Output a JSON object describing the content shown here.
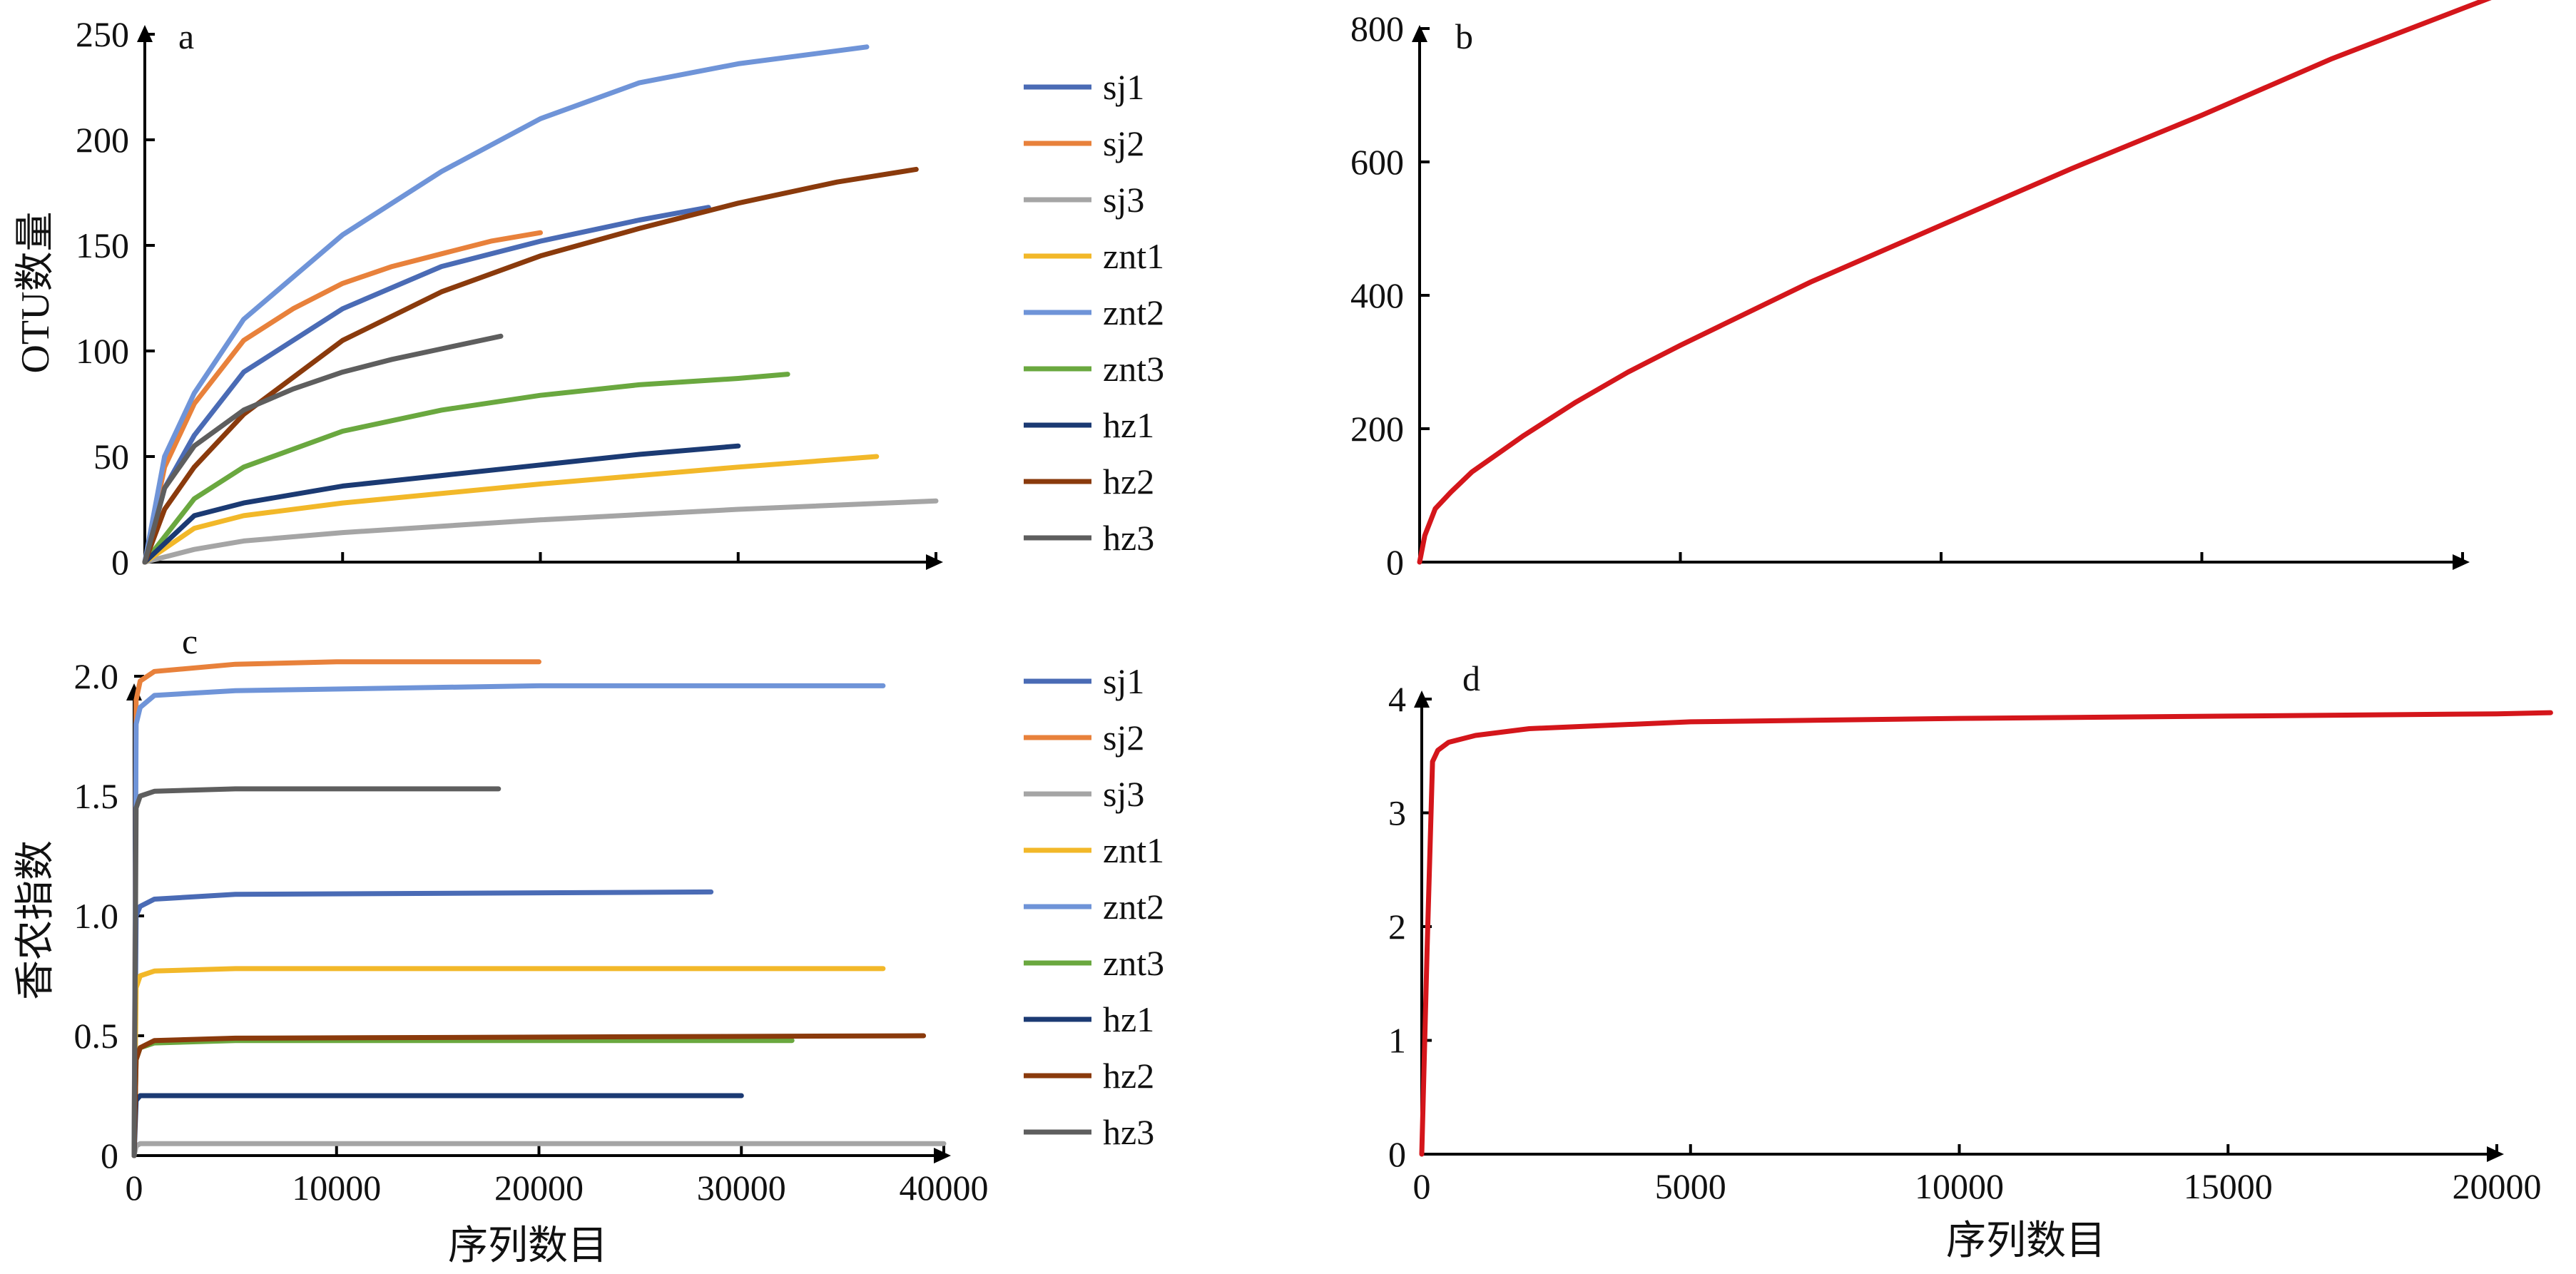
{
  "colors": {
    "sj1": "#4a6bb5",
    "sj2": "#e8813b",
    "sj3": "#a5a5a5",
    "znt1": "#f2b829",
    "znt2": "#6f94d8",
    "znt3": "#6aa83f",
    "hz1": "#1b3a73",
    "hz2": "#8a3a0c",
    "hz3": "#5e5e5e",
    "total": "#d4161b",
    "axis": "#000000"
  },
  "legend": [
    "sj1",
    "sj2",
    "sj3",
    "znt1",
    "znt2",
    "znt3",
    "hz1",
    "hz2",
    "hz3"
  ],
  "shared_xlabel": "序列数目",
  "chart_data": [
    {
      "id": "a",
      "type": "line",
      "panel_label": "a",
      "ylabel": "OTU数量",
      "xlabel": "",
      "xlim": [
        0,
        40000
      ],
      "ylim": [
        0,
        250
      ],
      "xticks": [
        0,
        10000,
        20000,
        30000,
        40000
      ],
      "xtick_labels_shown": false,
      "yticks": [
        0,
        50,
        100,
        150,
        200,
        250
      ],
      "series": [
        {
          "name": "sj1",
          "x": [
            0,
            1000,
            2500,
            5000,
            10000,
            15000,
            20000,
            25000,
            28500
          ],
          "y": [
            0,
            35,
            60,
            90,
            120,
            140,
            152,
            162,
            168
          ]
        },
        {
          "name": "sj2",
          "x": [
            0,
            1000,
            2500,
            5000,
            7500,
            10000,
            12500,
            15000,
            17500,
            20000
          ],
          "y": [
            0,
            45,
            75,
            105,
            120,
            132,
            140,
            146,
            152,
            156
          ]
        },
        {
          "name": "sj3",
          "x": [
            0,
            2500,
            5000,
            10000,
            20000,
            30000,
            40000
          ],
          "y": [
            0,
            6,
            10,
            14,
            20,
            25,
            29
          ]
        },
        {
          "name": "znt1",
          "x": [
            0,
            2500,
            5000,
            10000,
            20000,
            30000,
            37000
          ],
          "y": [
            0,
            16,
            22,
            28,
            37,
            45,
            50
          ]
        },
        {
          "name": "znt2",
          "x": [
            0,
            1000,
            2500,
            5000,
            10000,
            15000,
            20000,
            25000,
            30000,
            36500
          ],
          "y": [
            0,
            50,
            80,
            115,
            155,
            185,
            210,
            227,
            236,
            244
          ]
        },
        {
          "name": "znt3",
          "x": [
            0,
            2500,
            5000,
            10000,
            15000,
            20000,
            25000,
            30000,
            32500
          ],
          "y": [
            0,
            30,
            45,
            62,
            72,
            79,
            84,
            87,
            89
          ]
        },
        {
          "name": "hz1",
          "x": [
            0,
            2500,
            5000,
            10000,
            15000,
            20000,
            25000,
            30000
          ],
          "y": [
            0,
            22,
            28,
            36,
            41,
            46,
            51,
            55
          ]
        },
        {
          "name": "hz2",
          "x": [
            0,
            1000,
            2500,
            5000,
            10000,
            15000,
            20000,
            25000,
            30000,
            35000,
            39000
          ],
          "y": [
            0,
            25,
            45,
            70,
            105,
            128,
            145,
            158,
            170,
            180,
            186
          ]
        },
        {
          "name": "hz3",
          "x": [
            0,
            1000,
            2500,
            5000,
            7500,
            10000,
            12500,
            15000,
            18000
          ],
          "y": [
            0,
            35,
            55,
            72,
            82,
            90,
            96,
            101,
            107
          ]
        }
      ]
    },
    {
      "id": "b",
      "type": "line",
      "panel_label": "b",
      "ylabel": "",
      "xlabel": "",
      "xlim": [
        0,
        20000
      ],
      "ylim": [
        0,
        800
      ],
      "xticks": [
        0,
        5000,
        10000,
        15000,
        20000
      ],
      "xtick_labels_shown": false,
      "yticks": [
        0,
        200,
        400,
        600,
        800
      ],
      "series": [
        {
          "name": "",
          "x": [
            0,
            100,
            300,
            600,
            1000,
            2000,
            3000,
            4000,
            5000,
            7500,
            10000,
            12500,
            15000,
            17500,
            20000,
            21000
          ],
          "y": [
            0,
            40,
            80,
            105,
            135,
            190,
            240,
            285,
            325,
            420,
            505,
            590,
            670,
            755,
            830,
            860
          ]
        }
      ]
    },
    {
      "id": "c",
      "type": "line",
      "panel_label": "c",
      "ylabel": "香农指数",
      "xlabel": "序列数目",
      "xlim": [
        0,
        40000
      ],
      "ylim": [
        0,
        2.0
      ],
      "xticks": [
        0,
        10000,
        20000,
        30000,
        40000
      ],
      "yticks": [
        0,
        0.5,
        1.0,
        1.5,
        2.0
      ],
      "ytick_labels": [
        "0",
        "0.5",
        "1.0",
        "1.5",
        "2.0"
      ],
      "series": [
        {
          "name": "sj1",
          "x": [
            0,
            100,
            300,
            1000,
            5000,
            28500
          ],
          "y": [
            0,
            1.0,
            1.04,
            1.07,
            1.09,
            1.1
          ]
        },
        {
          "name": "sj2",
          "x": [
            0,
            100,
            300,
            1000,
            5000,
            10000,
            20000
          ],
          "y": [
            0,
            1.9,
            1.98,
            2.02,
            2.05,
            2.06,
            2.06
          ]
        },
        {
          "name": "sj3",
          "x": [
            0,
            100,
            300,
            5000,
            40000
          ],
          "y": [
            0,
            0.04,
            0.05,
            0.05,
            0.05
          ]
        },
        {
          "name": "znt1",
          "x": [
            0,
            100,
            300,
            1000,
            5000,
            37000
          ],
          "y": [
            0,
            0.7,
            0.75,
            0.77,
            0.78,
            0.78
          ]
        },
        {
          "name": "znt2",
          "x": [
            0,
            100,
            300,
            1000,
            5000,
            20000,
            37000
          ],
          "y": [
            0,
            1.8,
            1.87,
            1.92,
            1.94,
            1.96,
            1.96
          ]
        },
        {
          "name": "znt3",
          "x": [
            0,
            100,
            300,
            1000,
            5000,
            32500
          ],
          "y": [
            0,
            0.4,
            0.45,
            0.47,
            0.48,
            0.48
          ]
        },
        {
          "name": "hz1",
          "x": [
            0,
            100,
            300,
            1000,
            30000
          ],
          "y": [
            0,
            0.23,
            0.25,
            0.25,
            0.25
          ]
        },
        {
          "name": "hz2",
          "x": [
            0,
            100,
            300,
            1000,
            5000,
            39000
          ],
          "y": [
            0,
            0.4,
            0.45,
            0.48,
            0.49,
            0.5
          ]
        },
        {
          "name": "hz3",
          "x": [
            0,
            100,
            300,
            1000,
            5000,
            18000
          ],
          "y": [
            0,
            1.45,
            1.5,
            1.52,
            1.53,
            1.53
          ]
        }
      ]
    },
    {
      "id": "d",
      "type": "line",
      "panel_label": "d",
      "ylabel": "",
      "xlabel": "序列数目",
      "xlim": [
        0,
        20000
      ],
      "ylim": [
        0,
        4
      ],
      "xticks": [
        0,
        5000,
        10000,
        15000,
        20000
      ],
      "yticks": [
        0,
        1,
        2,
        3,
        4
      ],
      "series": [
        {
          "name": "",
          "x": [
            0,
            100,
            200,
            300,
            500,
            1000,
            2000,
            5000,
            10000,
            15000,
            20000,
            21000
          ],
          "y": [
            0,
            1.8,
            3.45,
            3.55,
            3.62,
            3.68,
            3.74,
            3.8,
            3.83,
            3.85,
            3.87,
            3.88
          ]
        }
      ]
    }
  ]
}
